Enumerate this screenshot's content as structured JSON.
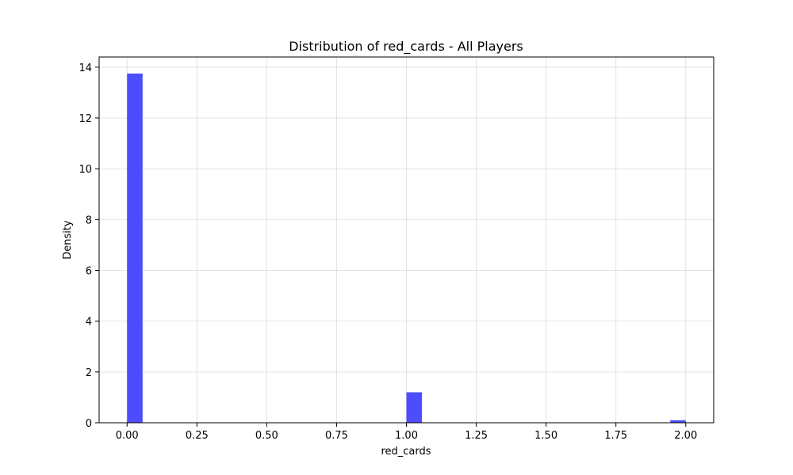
{
  "chart_data": {
    "type": "bar",
    "title": "Distribution of red_cards - All Players",
    "xlabel": "red_cards",
    "ylabel": "Density",
    "xlim": [
      -0.1,
      2.1
    ],
    "ylim": [
      0,
      14.4
    ],
    "xticks": [
      0.0,
      0.25,
      0.5,
      0.75,
      1.0,
      1.25,
      1.5,
      1.75,
      2.0
    ],
    "xtick_labels": [
      "0.00",
      "0.25",
      "0.50",
      "0.75",
      "1.00",
      "1.25",
      "1.50",
      "1.75",
      "2.00"
    ],
    "yticks": [
      0,
      2,
      4,
      6,
      8,
      10,
      12,
      14
    ],
    "ytick_labels": [
      "0",
      "2",
      "4",
      "6",
      "8",
      "10",
      "12",
      "14"
    ],
    "grid": true,
    "bar_color": "#4646ff",
    "bins": [
      {
        "start": 0.0,
        "end": 0.0556,
        "value": 13.75
      },
      {
        "start": 1.0,
        "end": 1.0556,
        "value": 1.2
      },
      {
        "start": 1.9444,
        "end": 2.0,
        "value": 0.1
      }
    ]
  }
}
